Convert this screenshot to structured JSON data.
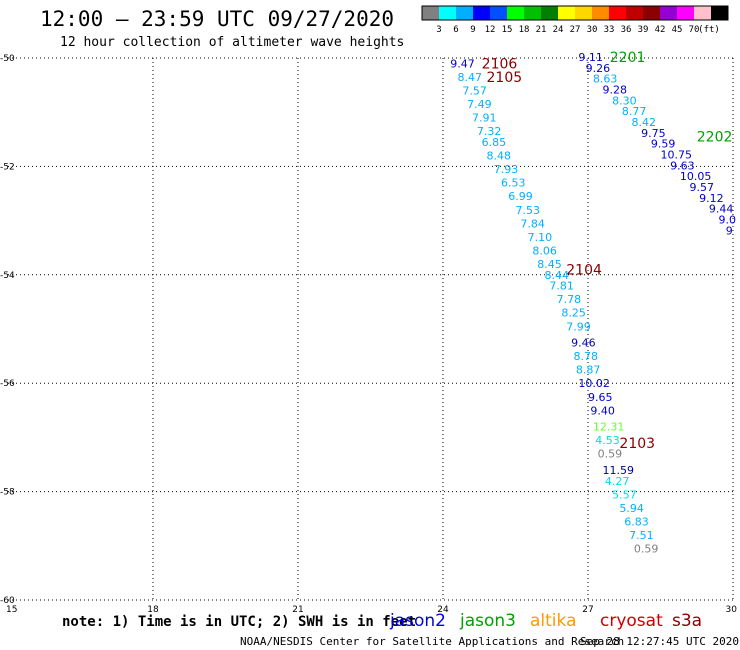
{
  "header": {
    "title": "12:00 — 23:59 UTC 09/27/2020",
    "subtitle": "12 hour collection of altimeter wave heights"
  },
  "colorbar": {
    "colors": [
      "#808080",
      "#00ffff",
      "#00b0ff",
      "#0000ff",
      "#0050ff",
      "#00ff00",
      "#00c000",
      "#008000",
      "#ffff00",
      "#ffd700",
      "#ff8c00",
      "#ff0000",
      "#c00000",
      "#8b0000",
      "#9400d3",
      "#ff00ff",
      "#ffc0cb",
      "#000000"
    ],
    "labels": [
      "3",
      "6",
      "9",
      "12",
      "15",
      "18",
      "21",
      "24",
      "27",
      "30",
      "33",
      "36",
      "39",
      "42",
      "45",
      "70"
    ],
    "unit": "(ft)"
  },
  "footer": {
    "note": "note: 1) Time is in UTC; 2) SWH is in feet",
    "legend": [
      {
        "name": "jason2",
        "color": "#0000dd"
      },
      {
        "name": "jason3",
        "color": "#00a000"
      },
      {
        "name": "altika",
        "color": "#ff9900"
      },
      {
        "name": "cryosat",
        "color": "#cc0000"
      },
      {
        "name": "s3a",
        "color": "#880000"
      }
    ],
    "credit": "NOAA/NESDIS Center for Satellite Applications and Research",
    "timestamp": "Sep 28 12:27:45 UTC 2020"
  },
  "chart_data": {
    "type": "scatter",
    "xlim": [
      15,
      30
    ],
    "ylim": [
      -60,
      -50
    ],
    "x_ticks": [
      15,
      18,
      21,
      24,
      27,
      30
    ],
    "y_ticks": [
      -50,
      -52,
      -54,
      -56,
      -58,
      -60
    ],
    "x_tick_labels": [
      "15",
      "18",
      "21",
      "24",
      "27",
      "30"
    ],
    "y_tick_labels": [
      "-50",
      "-52",
      "-54",
      "-56",
      "-58",
      "-60"
    ],
    "grid": true,
    "tracks": [
      {
        "label": "2106",
        "label_color": "#880000",
        "x": 24.8,
        "y": -50.1
      },
      {
        "label": "2105",
        "label_color": "#880000",
        "x": 24.9,
        "y": -50.35
      },
      {
        "label": "2104",
        "label_color": "#880000",
        "x": 26.55,
        "y": -53.9
      },
      {
        "label": "2103",
        "label_color": "#880000",
        "x": 27.65,
        "y": -57.1
      },
      {
        "label": "2201",
        "label_color": "#00a000",
        "x": 27.45,
        "y": -49.98
      },
      {
        "label": "2202",
        "label_color": "#00a000",
        "x": 29.25,
        "y": -51.45
      }
    ],
    "series": [
      {
        "name": "s3a",
        "points": [
          {
            "x": 24.15,
            "y": -50.1,
            "v": "9.47",
            "c": "#0000cc"
          },
          {
            "x": 24.3,
            "y": -50.35,
            "v": "8.47",
            "c": "#00b0ff"
          },
          {
            "x": 24.4,
            "y": -50.6,
            "v": "7.57",
            "c": "#00b0ff"
          },
          {
            "x": 24.5,
            "y": -50.85,
            "v": "7.49",
            "c": "#00b0ff"
          },
          {
            "x": 24.6,
            "y": -51.1,
            "v": "7.91",
            "c": "#00b0ff"
          },
          {
            "x": 24.7,
            "y": -51.35,
            "v": "7.32",
            "c": "#00b0ff"
          },
          {
            "x": 24.8,
            "y": -51.55,
            "v": "6.85",
            "c": "#00b0ff"
          },
          {
            "x": 24.9,
            "y": -51.8,
            "v": "8.48",
            "c": "#00b0ff"
          },
          {
            "x": 25.05,
            "y": -52.05,
            "v": "7.93",
            "c": "#00b0ff"
          },
          {
            "x": 25.2,
            "y": -52.3,
            "v": "6.53",
            "c": "#00b0ff"
          },
          {
            "x": 25.35,
            "y": -52.55,
            "v": "6.99",
            "c": "#00b0ff"
          },
          {
            "x": 25.5,
            "y": -52.8,
            "v": "7.53",
            "c": "#00b0ff"
          },
          {
            "x": 25.6,
            "y": -53.05,
            "v": "7.84",
            "c": "#00b0ff"
          },
          {
            "x": 25.75,
            "y": -53.3,
            "v": "7.10",
            "c": "#00b0ff"
          },
          {
            "x": 25.85,
            "y": -53.55,
            "v": "8.06",
            "c": "#00b0ff"
          },
          {
            "x": 25.95,
            "y": -53.8,
            "v": "8.45",
            "c": "#00b0ff"
          },
          {
            "x": 26.1,
            "y": -54.0,
            "v": "8.44",
            "c": "#00b0ff"
          },
          {
            "x": 26.2,
            "y": -54.2,
            "v": "7.81",
            "c": "#00b0ff"
          },
          {
            "x": 26.35,
            "y": -54.45,
            "v": "7.78",
            "c": "#00b0ff"
          },
          {
            "x": 26.45,
            "y": -54.7,
            "v": "8.25",
            "c": "#00b0ff"
          },
          {
            "x": 26.55,
            "y": -54.95,
            "v": "7.99",
            "c": "#00b0ff"
          },
          {
            "x": 26.65,
            "y": -55.25,
            "v": "9.46",
            "c": "#0000cc"
          },
          {
            "x": 26.7,
            "y": -55.5,
            "v": "8.78",
            "c": "#00b0ff"
          },
          {
            "x": 26.75,
            "y": -55.75,
            "v": "8.87",
            "c": "#00b0ff"
          },
          {
            "x": 26.8,
            "y": -56.0,
            "v": "10.02",
            "c": "#0000cc"
          },
          {
            "x": 27.0,
            "y": -56.25,
            "v": "9.65",
            "c": "#0000cc"
          },
          {
            "x": 27.05,
            "y": -56.5,
            "v": "9.40",
            "c": "#0000cc"
          },
          {
            "x": 27.1,
            "y": -56.8,
            "v": "12.31",
            "c": "#66ff33"
          },
          {
            "x": 27.15,
            "y": -57.05,
            "v": "4.53",
            "c": "#00e0e0"
          },
          {
            "x": 27.2,
            "y": -57.3,
            "v": "0.59",
            "c": "#808080"
          },
          {
            "x": 27.3,
            "y": -57.6,
            "v": "11.59",
            "c": "#00008b"
          },
          {
            "x": 27.35,
            "y": -57.8,
            "v": "4.27",
            "c": "#00e0e0"
          },
          {
            "x": 27.5,
            "y": -58.05,
            "v": "5.57",
            "c": "#00e0e0"
          },
          {
            "x": 27.65,
            "y": -58.3,
            "v": "5.94",
            "c": "#00b0ff"
          },
          {
            "x": 27.75,
            "y": -58.55,
            "v": "6.83",
            "c": "#00b0ff"
          },
          {
            "x": 27.85,
            "y": -58.8,
            "v": "7.51",
            "c": "#00b0ff"
          },
          {
            "x": 27.95,
            "y": -59.05,
            "v": "0.59",
            "c": "#808080"
          }
        ]
      },
      {
        "name": "jason3",
        "points": [
          {
            "x": 26.8,
            "y": -49.98,
            "v": "9.11",
            "c": "#0000cc"
          },
          {
            "x": 26.95,
            "y": -50.18,
            "v": "9.26",
            "c": "#0000cc"
          },
          {
            "x": 27.1,
            "y": -50.38,
            "v": "8.63",
            "c": "#00b0ff"
          },
          {
            "x": 27.3,
            "y": -50.58,
            "v": "9.28",
            "c": "#0000cc"
          },
          {
            "x": 27.5,
            "y": -50.78,
            "v": "8.30",
            "c": "#00b0ff"
          },
          {
            "x": 27.7,
            "y": -50.98,
            "v": "8.77",
            "c": "#00b0ff"
          },
          {
            "x": 27.9,
            "y": -51.18,
            "v": "8.42",
            "c": "#00b0ff"
          },
          {
            "x": 28.1,
            "y": -51.38,
            "v": "9.75",
            "c": "#0000cc"
          },
          {
            "x": 28.3,
            "y": -51.58,
            "v": "9.59",
            "c": "#0000cc"
          },
          {
            "x": 28.5,
            "y": -51.78,
            "v": "10.75",
            "c": "#0000cc"
          },
          {
            "x": 28.7,
            "y": -51.98,
            "v": "9.63",
            "c": "#0000cc"
          },
          {
            "x": 28.9,
            "y": -52.18,
            "v": "10.05",
            "c": "#0000cc"
          },
          {
            "x": 29.1,
            "y": -52.38,
            "v": "9.57",
            "c": "#0000cc"
          },
          {
            "x": 29.3,
            "y": -52.58,
            "v": "9.12",
            "c": "#0000cc"
          },
          {
            "x": 29.5,
            "y": -52.78,
            "v": "9.44",
            "c": "#0000cc"
          },
          {
            "x": 29.7,
            "y": -52.98,
            "v": "9.0",
            "c": "#0000cc"
          },
          {
            "x": 29.85,
            "y": -53.18,
            "v": "9",
            "c": "#0000cc"
          }
        ]
      }
    ]
  }
}
